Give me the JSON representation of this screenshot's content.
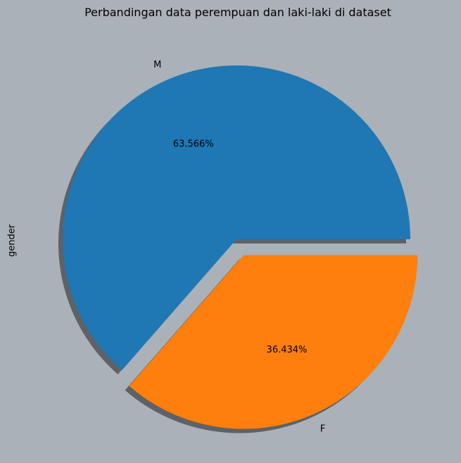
{
  "chart_data": {
    "type": "pie",
    "title": "Perbandingan data perempuan dan laki-laki di dataset",
    "ylabel": "gender",
    "labels": [
      "M",
      "F"
    ],
    "values": [
      63.566,
      36.434
    ],
    "value_labels": [
      "63.566%",
      "36.434%"
    ],
    "colors": [
      "#1f77b4",
      "#ff7f0e"
    ],
    "explode": [
      0,
      0.1
    ],
    "shadow": true,
    "start_angle_deg": 0,
    "direction": "counterclockwise",
    "background": "#abb1b9"
  }
}
